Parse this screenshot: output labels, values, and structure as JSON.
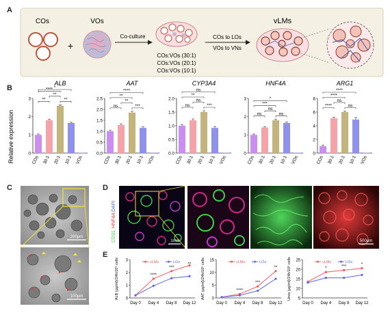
{
  "panel_a": {
    "letter": "A",
    "cos_label": "COs",
    "vos_label": "VOs",
    "plus": "+",
    "coculture_label": "Co-culture",
    "ratios": [
      "COs:VOs (30:1)",
      "COs:VOs (20:1)",
      "COs:VOs (10:1)"
    ],
    "arrow_top": "COs to LOs",
    "arrow_bottom": "VOs to VNs",
    "vlms_label": "vLMs"
  },
  "panel_b": {
    "letter": "B",
    "ylabel": "Relative expression",
    "categories": [
      "COs",
      "30:1",
      "20:1",
      "10:1",
      "VOs"
    ],
    "colors": [
      "#c98ef0",
      "#f4a3a9",
      "#c2b47c",
      "#8f91ea",
      "#c98ef0"
    ]
  },
  "panel_c": {
    "letter": "C",
    "scale_top": "200μm",
    "scale_bottom": "100μm"
  },
  "panel_d": {
    "letter": "D",
    "stain_green": "CD31",
    "stain_red": "HNF4A",
    "stain_blue": "DAPI",
    "scale_left": "1mm",
    "scale_right": "500μm"
  },
  "panel_e": {
    "letter": "E"
  },
  "chart_data": [
    {
      "type": "bar",
      "title": "ALB",
      "ylabel": "Relative expression",
      "categories": [
        "COs",
        "30:1",
        "20:1",
        "10:1",
        "VOs"
      ],
      "values": [
        1.0,
        1.8,
        2.6,
        1.65,
        0.0
      ],
      "errors": [
        0.05,
        0.06,
        0.05,
        0.04,
        0
      ],
      "ylim": [
        0,
        3
      ],
      "yticks": [
        "0",
        "1",
        "2",
        "3"
      ],
      "significance": [
        {
          "from": 0,
          "to": 1,
          "label": "**",
          "level": 0
        },
        {
          "from": 1,
          "to": 2,
          "label": "**",
          "level": 1
        },
        {
          "from": 2,
          "to": 3,
          "label": "**",
          "level": 0
        },
        {
          "from": 0,
          "to": 2,
          "label": "****",
          "level": 2
        },
        {
          "from": 0,
          "to": 3,
          "label": "*",
          "level": 3
        }
      ]
    },
    {
      "type": "bar",
      "title": "AAT",
      "ylabel": "",
      "categories": [
        "COs",
        "30:1",
        "20:1",
        "10:1",
        "VOs"
      ],
      "values": [
        1.0,
        1.28,
        1.85,
        1.15,
        0.0
      ],
      "errors": [
        0.04,
        0.05,
        0.06,
        0.05,
        0
      ],
      "ylim": [
        0,
        2.5
      ],
      "yticks": [
        "0.0",
        "0.5",
        "1.0",
        "1.5",
        "2.0",
        "2.5"
      ],
      "significance": [
        {
          "from": 0,
          "to": 1,
          "label": "ns",
          "level": 0
        },
        {
          "from": 1,
          "to": 2,
          "label": "**",
          "level": 1
        },
        {
          "from": 2,
          "to": 3,
          "label": "***",
          "level": 0
        },
        {
          "from": 0,
          "to": 2,
          "label": "**",
          "level": 2
        },
        {
          "from": 0,
          "to": 3,
          "label": "****",
          "level": 3
        }
      ]
    },
    {
      "type": "bar",
      "title": "CYP3A4",
      "ylabel": "",
      "categories": [
        "COs",
        "30:1",
        "20:1",
        "10:1",
        "VOs"
      ],
      "values": [
        1.0,
        1.2,
        1.5,
        0.92,
        0.0
      ],
      "errors": [
        0.04,
        0.05,
        0.05,
        0.05,
        0
      ],
      "ylim": [
        0,
        2.0
      ],
      "yticks": [
        "0.0",
        "0.5",
        "1.0",
        "1.5",
        "2.0"
      ],
      "significance": [
        {
          "from": 0,
          "to": 1,
          "label": "ns",
          "level": 0
        },
        {
          "from": 1,
          "to": 2,
          "label": "ns",
          "level": 1
        },
        {
          "from": 2,
          "to": 3,
          "label": "***",
          "level": 0
        },
        {
          "from": 0,
          "to": 2,
          "label": "**",
          "level": 2
        },
        {
          "from": 0,
          "to": 3,
          "label": "ns",
          "level": 3
        }
      ]
    },
    {
      "type": "bar",
      "title": "HNF4A",
      "ylabel": "",
      "categories": [
        "COs",
        "30:1",
        "20:1",
        "10:1",
        "VOs"
      ],
      "values": [
        1.0,
        1.4,
        1.8,
        1.65,
        0.0
      ],
      "errors": [
        0.05,
        0.05,
        0.05,
        0.05,
        0
      ],
      "ylim": [
        0,
        3
      ],
      "yticks": [
        "0",
        "1",
        "2",
        "3"
      ],
      "significance": [
        {
          "from": 0,
          "to": 1,
          "label": "ns",
          "level": 0
        },
        {
          "from": 1,
          "to": 2,
          "label": "ns",
          "level": 1
        },
        {
          "from": 2,
          "to": 3,
          "label": "ns",
          "level": 0
        },
        {
          "from": 0,
          "to": 2,
          "label": "***",
          "level": 2
        },
        {
          "from": 0,
          "to": 3,
          "label": "*",
          "level": 3
        }
      ]
    },
    {
      "type": "bar",
      "title": "ARG1",
      "ylabel": "",
      "categories": [
        "COs",
        "30:1",
        "20:1",
        "10:1",
        "VOs"
      ],
      "values": [
        1.0,
        5.1,
        6.0,
        4.9,
        0.0
      ],
      "errors": [
        0.15,
        0.15,
        0.15,
        0.3,
        0
      ],
      "ylim": [
        0,
        8
      ],
      "yticks": [
        "0",
        "2",
        "4",
        "6",
        "8"
      ],
      "significance": [
        {
          "from": 0,
          "to": 1,
          "label": "****",
          "level": 0
        },
        {
          "from": 1,
          "to": 2,
          "label": "ns",
          "level": 1
        },
        {
          "from": 2,
          "to": 3,
          "label": "ns",
          "level": 0
        },
        {
          "from": 0,
          "to": 2,
          "label": "****",
          "level": 2
        },
        {
          "from": 0,
          "to": 3,
          "label": "****",
          "level": 3
        }
      ]
    },
    {
      "type": "line",
      "ylabel": "ALB (μg/ml)/24h/10⁶ cells",
      "x": [
        "Day 0",
        "Day 4",
        "Day 8",
        "Day 12"
      ],
      "ylim": [
        0,
        3
      ],
      "yticks": [
        "0",
        "1",
        "2",
        "3"
      ],
      "series": [
        {
          "name": "vLMs",
          "values": [
            0.2,
            1.5,
            2.1,
            2.55
          ],
          "color": "#ee5a5a"
        },
        {
          "name": "LOs",
          "values": [
            0.2,
            0.95,
            1.55,
            1.7
          ],
          "color": "#5865e8"
        }
      ],
      "sig_labels": [
        "",
        "****",
        "***",
        "**"
      ]
    },
    {
      "type": "line",
      "ylabel": "AAT (μg/ml)/24h/10⁶ cells",
      "x": [
        "Day 0",
        "Day 4",
        "Day 8",
        "Day 12"
      ],
      "ylim": [
        0,
        15
      ],
      "yticks": [
        "0",
        "5",
        "10",
        "15"
      ],
      "series": [
        {
          "name": "vLMs",
          "values": [
            0.3,
            1.5,
            4.5,
            10.5
          ],
          "color": "#ee5a5a"
        },
        {
          "name": "LOs",
          "values": [
            0.3,
            1.0,
            2.8,
            7.5
          ],
          "color": "#5865e8"
        }
      ],
      "sig_labels": [
        "",
        "****",
        "***",
        "**"
      ]
    },
    {
      "type": "line",
      "ylabel": "Urea (μg/ml)/24h/10⁶ cells",
      "x": [
        "Day 0",
        "Day 4",
        "Day 8",
        "Day 12"
      ],
      "ylim": [
        5,
        25
      ],
      "yticks": [
        "5",
        "10",
        "15",
        "20",
        "25"
      ],
      "series": [
        {
          "name": "vLMs",
          "values": [
            13.5,
            18.5,
            19.5,
            20.5
          ],
          "color": "#ee5a5a"
        },
        {
          "name": "LOs",
          "values": [
            13.0,
            15.5,
            15.5,
            17.0
          ],
          "color": "#5865e8"
        }
      ],
      "sig_labels": [
        "",
        "*",
        "***",
        "*"
      ]
    }
  ]
}
